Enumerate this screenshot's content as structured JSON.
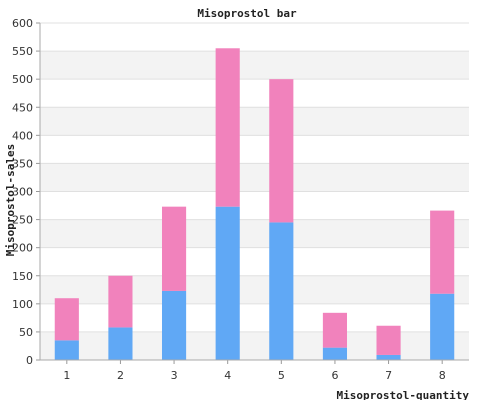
{
  "chart_data": {
    "type": "bar",
    "stacked": true,
    "title": "Misoprostol bar",
    "xlabel": "Misoprostol-quantity",
    "ylabel": "Misoprostol-sales",
    "categories": [
      "1",
      "2",
      "3",
      "4",
      "5",
      "6",
      "7",
      "8"
    ],
    "series": [
      {
        "values": [
          35,
          58,
          123,
          273,
          245,
          22,
          9,
          118
        ],
        "color": "#60a8f5"
      },
      {
        "values": [
          75,
          92,
          150,
          282,
          255,
          62,
          52,
          148
        ],
        "color": "#f182bc"
      }
    ],
    "ylim": [
      0,
      600
    ],
    "yticks": [
      0,
      50,
      100,
      150,
      200,
      250,
      300,
      350,
      400,
      450,
      500,
      550,
      600
    ],
    "grid": true,
    "band_colors": [
      "#ffffff",
      "#f3f3f3"
    ]
  }
}
